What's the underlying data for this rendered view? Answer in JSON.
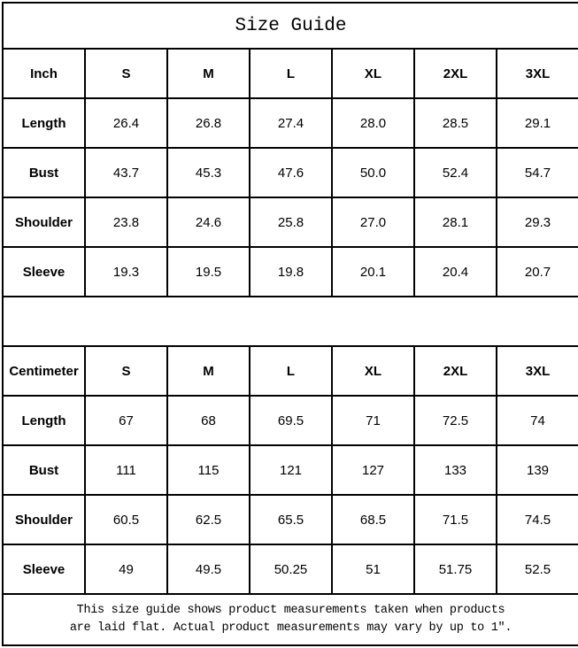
{
  "title": "Size Guide",
  "sizes": [
    "S",
    "M",
    "L",
    "XL",
    "2XL",
    "3XL"
  ],
  "inch_table": {
    "unit_label": "Inch",
    "rows": [
      {
        "label": "Length",
        "values": [
          "26.4",
          "26.8",
          "27.4",
          "28.0",
          "28.5",
          "29.1"
        ]
      },
      {
        "label": "Bust",
        "values": [
          "43.7",
          "45.3",
          "47.6",
          "50.0",
          "52.4",
          "54.7"
        ]
      },
      {
        "label": "Shoulder",
        "values": [
          "23.8",
          "24.6",
          "25.8",
          "27.0",
          "28.1",
          "29.3"
        ]
      },
      {
        "label": "Sleeve",
        "values": [
          "19.3",
          "19.5",
          "19.8",
          "20.1",
          "20.4",
          "20.7"
        ]
      }
    ]
  },
  "cm_table": {
    "unit_label": "Centimeter",
    "rows": [
      {
        "label": "Length",
        "values": [
          "67",
          "68",
          "69.5",
          "71",
          "72.5",
          "74"
        ]
      },
      {
        "label": "Bust",
        "values": [
          "111",
          "115",
          "121",
          "127",
          "133",
          "139"
        ]
      },
      {
        "label": "Shoulder",
        "values": [
          "60.5",
          "62.5",
          "65.5",
          "68.5",
          "71.5",
          "74.5"
        ]
      },
      {
        "label": "Sleeve",
        "values": [
          "49",
          "49.5",
          "50.25",
          "51",
          "51.75",
          "52.5"
        ]
      }
    ]
  },
  "footer_note": {
    "line1": "This size guide shows product measurements taken when products",
    "line2": "are laid flat. Actual product measurements may vary by up to 1″."
  },
  "colors": {
    "border": "#000000",
    "background": "#ffffff",
    "text": "#000000"
  }
}
